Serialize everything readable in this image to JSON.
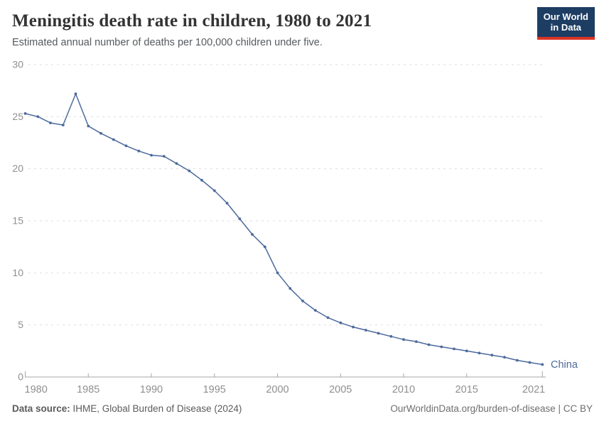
{
  "header": {
    "title": "Meningitis death rate in children, 1980 to 2021",
    "subtitle": "Estimated annual number of deaths per 100,000 children under five.",
    "logo_line1": "Our World",
    "logo_line2": "in Data",
    "logo_bg_color": "#1d3d63",
    "logo_accent_color": "#dc3426"
  },
  "footer": {
    "data_source_label": "Data source:",
    "data_source_value": " IHME, Global Burden of Disease (2024)",
    "link_text": "OurWorldinData.org/burden-of-disease | CC BY"
  },
  "chart_data": {
    "type": "line",
    "title": "Meningitis death rate in children, 1980 to 2021",
    "subtitle": "Estimated annual number of deaths per 100,000 children under five.",
    "xlabel": "",
    "ylabel": "",
    "ylim": [
      0,
      30
    ],
    "yticks": [
      0,
      5,
      10,
      15,
      20,
      25,
      30
    ],
    "xticks": [
      1980,
      1985,
      1990,
      1995,
      2000,
      2005,
      2010,
      2015,
      2021
    ],
    "grid": "horizontal-dashed",
    "legend_position": "end-of-line-label",
    "x": [
      1980,
      1981,
      1982,
      1983,
      1984,
      1985,
      1986,
      1987,
      1988,
      1989,
      1990,
      1991,
      1992,
      1993,
      1994,
      1995,
      1996,
      1997,
      1998,
      1999,
      2000,
      2001,
      2002,
      2003,
      2004,
      2005,
      2006,
      2007,
      2008,
      2009,
      2010,
      2011,
      2012,
      2013,
      2014,
      2015,
      2016,
      2017,
      2018,
      2019,
      2020,
      2021
    ],
    "series": [
      {
        "name": "China",
        "color": "#4C6A9C",
        "values": [
          25.3,
          25.0,
          24.4,
          24.2,
          27.2,
          24.1,
          23.4,
          22.8,
          22.2,
          21.7,
          21.3,
          21.2,
          20.5,
          19.8,
          18.9,
          17.9,
          16.7,
          15.2,
          13.7,
          12.5,
          10.0,
          8.5,
          7.3,
          6.4,
          5.7,
          5.2,
          4.8,
          4.5,
          4.2,
          3.9,
          3.6,
          3.4,
          3.1,
          2.9,
          2.7,
          2.5,
          2.3,
          2.1,
          1.9,
          1.6,
          1.4,
          1.2
        ]
      }
    ],
    "colors": {
      "gridline": "#dedede",
      "axis": "#a5a5a5",
      "tick_label": "#8f8f8f"
    }
  }
}
